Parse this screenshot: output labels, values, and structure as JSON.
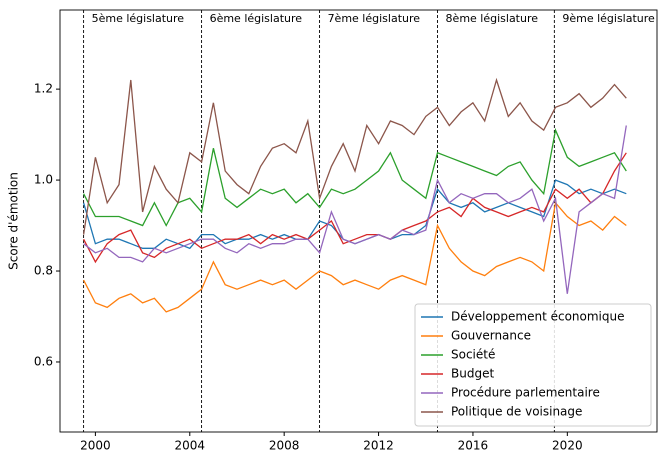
{
  "chart_data": {
    "type": "line",
    "ylabel": "Score d'émotion",
    "x": [
      1999.5,
      2000,
      2000.5,
      2001,
      2001.5,
      2002,
      2002.5,
      2003,
      2003.5,
      2004,
      2004.5,
      2005,
      2005.5,
      2006,
      2006.5,
      2007,
      2007.5,
      2008,
      2008.5,
      2009,
      2009.5,
      2010,
      2010.5,
      2011,
      2011.5,
      2012,
      2012.5,
      2013,
      2013.5,
      2014,
      2014.5,
      2015,
      2015.5,
      2016,
      2016.5,
      2017,
      2017.5,
      2018,
      2018.5,
      2019,
      2019.5,
      2020,
      2020.5,
      2021,
      2021.5,
      2022,
      2022.5
    ],
    "series": [
      {
        "name": "Développement économique",
        "color": "#1f77b4",
        "values": [
          0.95,
          0.86,
          0.87,
          0.87,
          0.86,
          0.85,
          0.85,
          0.87,
          0.86,
          0.85,
          0.88,
          0.88,
          0.86,
          0.87,
          0.87,
          0.88,
          0.87,
          0.88,
          0.87,
          0.87,
          0.91,
          0.9,
          0.87,
          0.86,
          0.87,
          0.88,
          0.87,
          0.88,
          0.88,
          0.9,
          0.98,
          0.95,
          0.94,
          0.95,
          0.93,
          0.94,
          0.95,
          0.94,
          0.93,
          0.92,
          1.0,
          0.99,
          0.97,
          0.98,
          0.97,
          0.98,
          0.97
        ]
      },
      {
        "name": "Gouvernance",
        "color": "#ff7f0e",
        "values": [
          0.78,
          0.73,
          0.72,
          0.74,
          0.75,
          0.73,
          0.74,
          0.71,
          0.72,
          0.74,
          0.76,
          0.82,
          0.77,
          0.76,
          0.77,
          0.78,
          0.77,
          0.78,
          0.76,
          0.78,
          0.8,
          0.79,
          0.77,
          0.78,
          0.77,
          0.76,
          0.78,
          0.79,
          0.78,
          0.77,
          0.9,
          0.85,
          0.82,
          0.8,
          0.79,
          0.81,
          0.82,
          0.83,
          0.82,
          0.8,
          0.95,
          0.92,
          0.9,
          0.91,
          0.89,
          0.92,
          0.9
        ]
      },
      {
        "name": "Société",
        "color": "#2ca02c",
        "values": [
          0.97,
          0.92,
          0.92,
          0.92,
          0.91,
          0.9,
          0.95,
          0.9,
          0.95,
          0.96,
          0.93,
          1.07,
          0.96,
          0.94,
          0.96,
          0.98,
          0.97,
          0.98,
          0.95,
          0.97,
          0.94,
          0.98,
          0.97,
          0.98,
          1.0,
          1.02,
          1.06,
          1.0,
          0.98,
          0.96,
          1.06,
          1.05,
          1.04,
          1.03,
          1.02,
          1.01,
          1.03,
          1.04,
          1.0,
          0.97,
          1.11,
          1.05,
          1.03,
          1.04,
          1.05,
          1.06,
          1.02
        ]
      },
      {
        "name": "Budget",
        "color": "#d62728",
        "values": [
          0.87,
          0.82,
          0.86,
          0.88,
          0.89,
          0.84,
          0.83,
          0.85,
          0.86,
          0.87,
          0.85,
          0.86,
          0.87,
          0.87,
          0.88,
          0.86,
          0.88,
          0.87,
          0.88,
          0.87,
          0.89,
          0.91,
          0.86,
          0.87,
          0.88,
          0.88,
          0.87,
          0.89,
          0.9,
          0.91,
          0.93,
          0.94,
          0.92,
          0.96,
          0.94,
          0.93,
          0.92,
          0.93,
          0.94,
          0.93,
          0.98,
          0.96,
          0.98,
          0.95,
          0.97,
          1.02,
          1.06
        ]
      },
      {
        "name": "Procédure parlementaire",
        "color": "#9467bd",
        "values": [
          0.86,
          0.84,
          0.85,
          0.83,
          0.83,
          0.82,
          0.85,
          0.84,
          0.85,
          0.86,
          0.87,
          0.87,
          0.85,
          0.84,
          0.86,
          0.85,
          0.86,
          0.86,
          0.87,
          0.87,
          0.84,
          0.93,
          0.87,
          0.86,
          0.87,
          0.88,
          0.87,
          0.89,
          0.88,
          0.89,
          1.0,
          0.95,
          0.97,
          0.96,
          0.97,
          0.97,
          0.95,
          0.96,
          0.98,
          0.91,
          0.96,
          0.75,
          0.93,
          0.95,
          0.97,
          0.96,
          1.12
        ]
      },
      {
        "name": "Politique de voisinage",
        "color": "#8c564b",
        "values": [
          0.88,
          1.05,
          0.95,
          0.99,
          1.22,
          0.93,
          1.03,
          0.98,
          0.95,
          1.06,
          1.04,
          1.17,
          1.02,
          0.99,
          0.97,
          1.03,
          1.07,
          1.08,
          1.06,
          1.13,
          0.96,
          1.03,
          1.08,
          1.02,
          1.12,
          1.08,
          1.13,
          1.12,
          1.1,
          1.14,
          1.16,
          1.12,
          1.15,
          1.17,
          1.13,
          1.22,
          1.14,
          1.17,
          1.13,
          1.11,
          1.16,
          1.17,
          1.19,
          1.16,
          1.18,
          1.21,
          1.18
        ]
      }
    ],
    "legislatures": [
      {
        "x": 1999.5,
        "label": "5ème législature"
      },
      {
        "x": 2004.5,
        "label": "6ème législature"
      },
      {
        "x": 2009.5,
        "label": "7ème législature"
      },
      {
        "x": 2014.5,
        "label": "8ème législature"
      },
      {
        "x": 2019.45,
        "label": "9ème législature"
      }
    ],
    "xlim": [
      1998.5,
      2023.8
    ],
    "xticks": [
      2000,
      2004,
      2008,
      2012,
      2016,
      2020
    ],
    "ylim": [
      0.446,
      1.374
    ],
    "yticks": [
      0.6,
      0.8,
      {
        "value": 1,
        "label": "1.0"
      },
      1.2
    ],
    "legend": "lower right"
  }
}
